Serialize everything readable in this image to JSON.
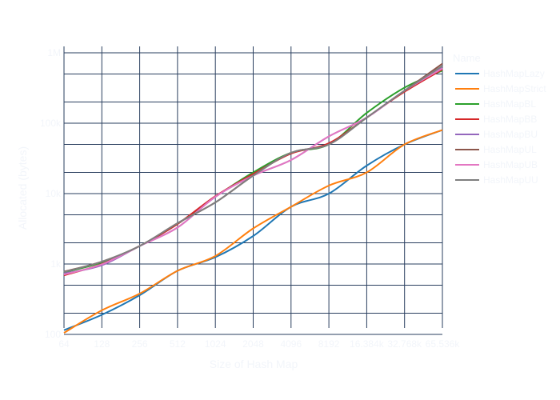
{
  "colors": {
    "background": "#ffffff",
    "grid": "#2a3f5f",
    "text": "#f2f5fa"
  },
  "chart_data": {
    "type": "line",
    "title": "",
    "xlabel": "Size of Hash Map",
    "ylabel": "Allocated (bytes)",
    "x_scale": "log2",
    "y_scale": "log10",
    "x_ticks": [
      "64",
      "128",
      "256",
      "512",
      "1024",
      "2048",
      "4096",
      "8192",
      "16.384k",
      "32.768k",
      "65.536k"
    ],
    "y_ticks": [
      "100",
      "1k",
      "10k",
      "100k",
      "1M"
    ],
    "x": [
      64,
      128,
      256,
      512,
      1024,
      2048,
      4096,
      8192,
      16384,
      32768,
      65536
    ],
    "ylim": [
      100,
      1000000
    ],
    "grid": true,
    "legend": {
      "title": "Name",
      "position": "right"
    },
    "series": [
      {
        "name": "HashMapLazy",
        "color": "#1f77b4",
        "values": [
          115,
          190,
          360,
          800,
          1250,
          2500,
          6500,
          10000,
          25000,
          50000,
          80000
        ]
      },
      {
        "name": "HashMapStrict",
        "color": "#ff7f0e",
        "values": [
          105,
          220,
          380,
          800,
          1300,
          3200,
          6500,
          13000,
          20000,
          50000,
          80000
        ]
      },
      {
        "name": "HashMapBL",
        "color": "#2ca02c",
        "values": [
          760,
          1050,
          1800,
          3700,
          9000,
          20000,
          38000,
          50000,
          140000,
          320000,
          560000
        ]
      },
      {
        "name": "HashMapBB",
        "color": "#d62728",
        "values": [
          690,
          1000,
          1800,
          3700,
          9200,
          19000,
          37000,
          52000,
          120000,
          280000,
          580000
        ]
      },
      {
        "name": "HashMapBU",
        "color": "#9467bd",
        "values": [
          730,
          960,
          1800,
          3300,
          9000,
          18000,
          30000,
          65000,
          120000,
          290000,
          610000
        ]
      },
      {
        "name": "HashMapUL",
        "color": "#8c564b",
        "values": [
          780,
          1080,
          1800,
          3800,
          7500,
          18000,
          38000,
          50000,
          120000,
          290000,
          700000
        ]
      },
      {
        "name": "HashMapUB",
        "color": "#e377c2",
        "values": [
          710,
          990,
          1800,
          3300,
          9000,
          18000,
          30000,
          65000,
          120000,
          290000,
          600000
        ]
      },
      {
        "name": "HashMapUU",
        "color": "#7f7f7f",
        "values": [
          770,
          1080,
          1800,
          3800,
          7500,
          18000,
          38000,
          50000,
          120000,
          290000,
          650000
        ]
      }
    ]
  }
}
